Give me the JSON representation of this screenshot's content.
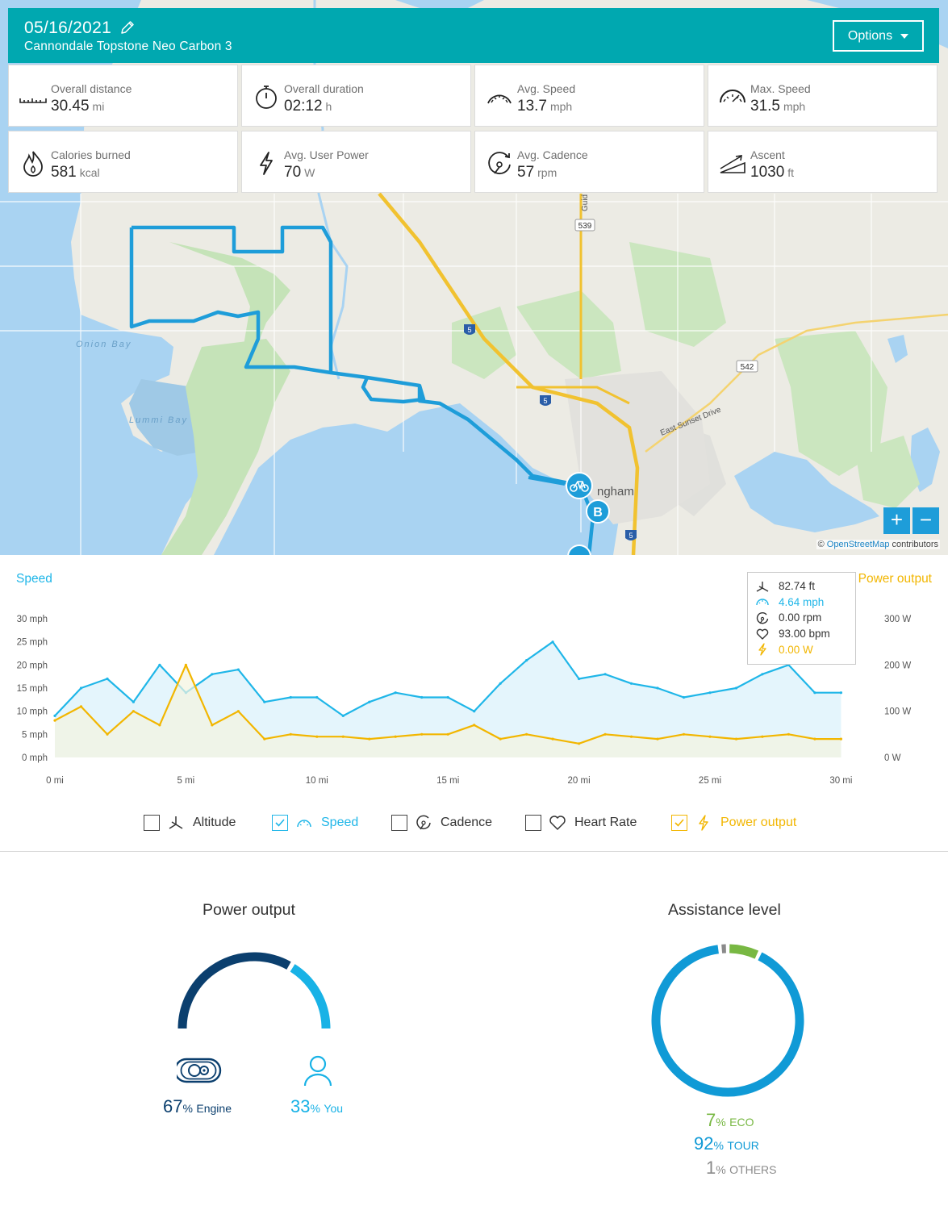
{
  "header": {
    "date": "05/16/2021",
    "bike_name": "Cannondale Topstone Neo Carbon 3",
    "options_label": "Options",
    "bg_color": "#00a8b0"
  },
  "stats": [
    {
      "icon": "ruler-icon",
      "label": "Overall distance",
      "value": "30.45",
      "unit": "mi"
    },
    {
      "icon": "stopwatch-icon",
      "label": "Overall duration",
      "value": "02:12",
      "unit": "h"
    },
    {
      "icon": "speedometer-icon",
      "label": "Avg. Speed",
      "value": "13.7",
      "unit": "mph"
    },
    {
      "icon": "max-speed-icon",
      "label": "Max. Speed",
      "value": "31.5",
      "unit": "mph"
    },
    {
      "icon": "flame-icon",
      "label": "Calories burned",
      "value": "581",
      "unit": "kcal"
    },
    {
      "icon": "lightning-icon",
      "label": "Avg. User Power",
      "value": "70",
      "unit": "W"
    },
    {
      "icon": "cadence-icon",
      "label": "Avg. Cadence",
      "value": "57",
      "unit": "rpm"
    },
    {
      "icon": "ascent-icon",
      "label": "Ascent",
      "value": "1030",
      "unit": "ft"
    }
  ],
  "map": {
    "labels": {
      "onion_bay": "Onion Bay",
      "lummi_bay": "Lummi Bay",
      "bellingham": "ngham",
      "east_sunset": "East Sunset Drive",
      "road_539": "539",
      "road_542": "542",
      "road_guide": "Guid",
      "i5": "5"
    },
    "marker_b": "B",
    "zoom_in": "+",
    "zoom_out": "−",
    "attribution_prefix": "©",
    "attribution_osm": "OpenStreetMap",
    "attribution_suffix": "contributors",
    "route_color": "#1e9dd9"
  },
  "chart": {
    "left_title": "Speed",
    "right_title": "Power output",
    "left_ticks": [
      "0 mph",
      "5 mph",
      "10 mph",
      "15 mph",
      "20 mph",
      "25 mph",
      "30 mph"
    ],
    "right_ticks": [
      "0 W",
      "100 W",
      "200 W",
      "300 W"
    ],
    "x_ticks": [
      "0 mi",
      "5 mi",
      "10 mi",
      "15 mi",
      "20 mi",
      "25 mi",
      "30 mi"
    ],
    "tooltip": {
      "altitude": "82.74 ft",
      "speed": "4.64 mph",
      "cadence": "0.00 rpm",
      "heart_rate": "93.00 bpm",
      "power": "0.00 W"
    },
    "legend": [
      {
        "label": "Altitude",
        "checked": false,
        "icon": "altitude-icon"
      },
      {
        "label": "Speed",
        "checked": true,
        "icon": "speedometer-icon"
      },
      {
        "label": "Cadence",
        "checked": false,
        "icon": "cadence-icon"
      },
      {
        "label": "Heart Rate",
        "checked": false,
        "icon": "heart-icon"
      },
      {
        "label": "Power output",
        "checked": true,
        "icon": "lightning-icon"
      }
    ],
    "speed_color": "#1fb6e8",
    "power_color": "#f2b600"
  },
  "chart_data": {
    "type": "line",
    "xlabel": "",
    "xlim": [
      0,
      30.45
    ],
    "ylim_left": [
      0,
      30
    ],
    "ylim_right": [
      0,
      300
    ],
    "x": [
      0,
      1,
      2,
      3,
      4,
      5,
      6,
      7,
      8,
      9,
      10,
      11,
      12,
      13,
      14,
      15,
      16,
      17,
      18,
      19,
      20,
      21,
      22,
      23,
      24,
      25,
      26,
      27,
      28,
      29,
      30
    ],
    "series": [
      {
        "name": "Speed",
        "axis": "left",
        "unit": "mph",
        "values": [
          9,
          15,
          17,
          12,
          20,
          14,
          18,
          19,
          12,
          13,
          13,
          9,
          12,
          14,
          13,
          13,
          10,
          16,
          21,
          25,
          17,
          18,
          16,
          15,
          13,
          14,
          15,
          18,
          20,
          14,
          14
        ]
      },
      {
        "name": "Power output",
        "axis": "right",
        "unit": "W",
        "values": [
          80,
          110,
          50,
          100,
          70,
          200,
          70,
          100,
          40,
          50,
          45,
          45,
          40,
          45,
          50,
          50,
          70,
          40,
          50,
          40,
          30,
          50,
          45,
          40,
          50,
          45,
          40,
          45,
          50,
          40,
          40
        ]
      }
    ],
    "grid": false
  },
  "power_output": {
    "title": "Power output",
    "engine_pct": "67",
    "engine_label": "Engine",
    "you_pct": "33",
    "you_label": "You",
    "engine_value": 67,
    "you_value": 33,
    "engine_color": "#0b3f6e",
    "you_color": "#18b2e6"
  },
  "assistance": {
    "title": "Assistance level",
    "eco_pct": "7",
    "eco_label": "ECO",
    "tour_pct": "92",
    "tour_label": "TOUR",
    "others_pct": "1",
    "others_label": "OTHERS",
    "eco_value": 7,
    "tour_value": 92,
    "others_value": 1,
    "eco_color": "#78b843",
    "tour_color": "#109ad6",
    "others_color": "#8a8a8a"
  },
  "pct_sign": "%"
}
